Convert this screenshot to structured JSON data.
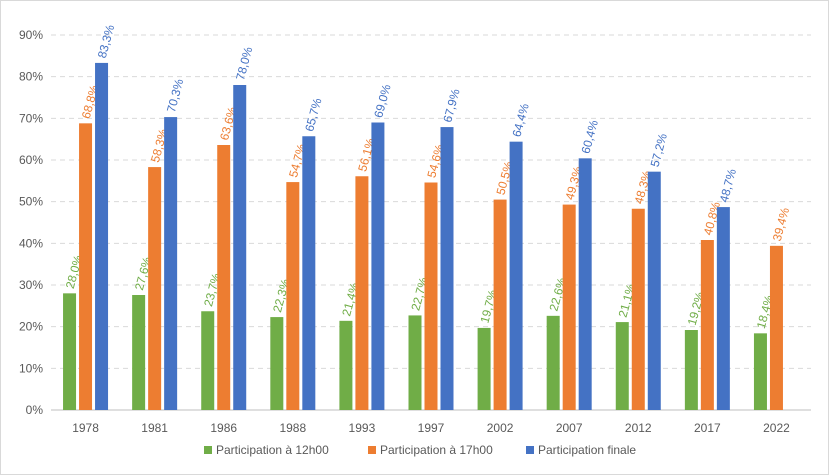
{
  "chart_data": {
    "type": "bar",
    "categories": [
      "1978",
      "1981",
      "1986",
      "1988",
      "1993",
      "1997",
      "2002",
      "2007",
      "2012",
      "2017",
      "2022"
    ],
    "series": [
      {
        "name": "Participation à 12h00",
        "color": "#70ad47",
        "values": [
          28.0,
          27.6,
          23.7,
          22.3,
          21.4,
          22.7,
          19.7,
          22.6,
          21.1,
          19.2,
          18.4
        ],
        "labels": [
          "28,0%",
          "27,6%",
          "23,7%",
          "22,3%",
          "21,4%",
          "22,7%",
          "19,7%",
          "22,6%",
          "21,1%",
          "19,2%",
          "18,4%"
        ]
      },
      {
        "name": "Participation à 17h00",
        "color": "#ed7d31",
        "values": [
          68.8,
          58.3,
          63.6,
          54.7,
          56.1,
          54.6,
          50.5,
          49.3,
          48.3,
          40.8,
          39.4
        ],
        "labels": [
          "68,8%",
          "58,3%",
          "63,6%",
          "54,7%",
          "56,1%",
          "54,6%",
          "50,5%",
          "49,3%",
          "48,3%",
          "40,8%",
          "39,4%"
        ]
      },
      {
        "name": "Participation finale",
        "color": "#4472c4",
        "values": [
          83.3,
          70.3,
          78.0,
          65.7,
          69.0,
          67.9,
          64.4,
          60.4,
          57.2,
          48.7,
          null
        ],
        "labels": [
          "83,3%",
          "70,3%",
          "78,0%",
          "65,7%",
          "69,0%",
          "67,9%",
          "64,4%",
          "60,4%",
          "57,2%",
          "48,7%",
          null
        ]
      }
    ],
    "ylim": [
      0,
      90
    ],
    "yticks": [
      "0%",
      "10%",
      "20%",
      "30%",
      "40%",
      "50%",
      "60%",
      "70%",
      "80%",
      "90%"
    ],
    "grid": true,
    "legend_position": "bottom"
  }
}
